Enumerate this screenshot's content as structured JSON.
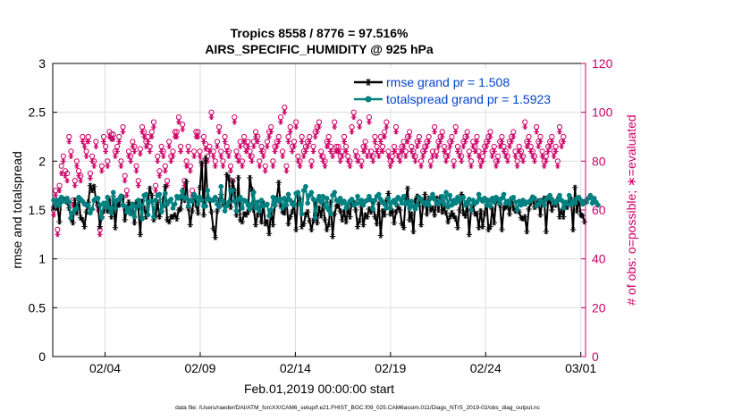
{
  "chart_data": {
    "type": "line",
    "title_line1": "Tropics 8558 / 8776 = 97.516%",
    "title_line2": "AIRS_SPECIFIC_HUMIDITY @ 925 hPa",
    "xlabel": "Feb.01,2019 00:00:00 start",
    "ylabel_left": "rmse and totalspread",
    "ylabel_right": "# of obs: o=possible; ∗=evaluated",
    "footer": "data file: /Users/raeder/DAI/ATM_forcXX/CAM6_setup/f.e21.FHIST_BGC.f09_025.CAM6assim.011/Diags_NTrS_2019-02/obs_diag_output.nc",
    "xlim": [
      0,
      28
    ],
    "x_ticks": [
      {
        "x": 2.75,
        "label": "02/04"
      },
      {
        "x": 7.75,
        "label": "02/09"
      },
      {
        "x": 12.75,
        "label": "02/14"
      },
      {
        "x": 17.75,
        "label": "02/19"
      },
      {
        "x": 22.75,
        "label": "02/24"
      },
      {
        "x": 27.75,
        "label": "03/01"
      }
    ],
    "ylim_left": [
      0,
      3
    ],
    "yticks_left": [
      "0",
      "0.5",
      "1",
      "1.5",
      "2",
      "2.5",
      "3"
    ],
    "ylim_right": [
      0,
      120
    ],
    "yticks_right": [
      "0",
      "20",
      "40",
      "60",
      "80",
      "100",
      "120"
    ],
    "legend": [
      {
        "label": "rmse grand pr = 1.508",
        "color": "#000000"
      },
      {
        "label": "totalspread grand pr = 1.5923",
        "color": "#008080"
      }
    ],
    "colors": {
      "rmse": "#000000",
      "spread": "#008080",
      "obs": "#cc0066",
      "legend_text": "#0044cc",
      "grid": "#dddddd"
    },
    "series": [
      {
        "name": "rmse",
        "axis": "left",
        "values": [
          1.53,
          1.58,
          1.53,
          1.38,
          1.62,
          1.61,
          1.6,
          1.58,
          1.52,
          1.41,
          1.37,
          1.6,
          1.47,
          1.62,
          1.42,
          1.4,
          1.33,
          1.48,
          1.58,
          1.75,
          1.7,
          1.74,
          1.6,
          1.55,
          1.33,
          1.43,
          1.49,
          1.56,
          1.49,
          1.6,
          1.43,
          1.64,
          1.32,
          1.55,
          1.55,
          1.64,
          1.63,
          1.4,
          1.5,
          1.58,
          1.48,
          1.48,
          1.37,
          1.58,
          1.53,
          1.25,
          1.59,
          1.52,
          1.43,
          1.6,
          1.72,
          1.65,
          1.4,
          1.44,
          1.58,
          1.43,
          1.49,
          1.61,
          1.74,
          1.4,
          1.38,
          1.43,
          1.43,
          1.45,
          1.41,
          1.5,
          1.51,
          1.7,
          1.6,
          1.79,
          1.52,
          1.35,
          1.49,
          1.65,
          1.55,
          1.47,
          1.73,
          1.98,
          1.45,
          2.03,
          1.62,
          1.6,
          1.48,
          1.31,
          1.22,
          1.49,
          1.6,
          1.66,
          1.56,
          1.54,
          1.86,
          1.83,
          1.53,
          1.79,
          1.7,
          1.45,
          1.83,
          1.4,
          1.38,
          1.46,
          1.45,
          1.48,
          1.83,
          1.71,
          1.5,
          1.35,
          1.45,
          1.52,
          1.38,
          1.57,
          1.36,
          1.38,
          1.26,
          1.48,
          1.35,
          1.55,
          1.62,
          1.78,
          1.54,
          1.48,
          1.47,
          1.6,
          1.36,
          1.43,
          1.48,
          1.57,
          1.3,
          1.65,
          1.61,
          1.33,
          1.36,
          1.45,
          1.48,
          1.39,
          1.3,
          1.39,
          1.59,
          1.37,
          1.52,
          1.44,
          1.56,
          1.4,
          1.3,
          1.35,
          1.58,
          1.23,
          1.46,
          1.54,
          1.54,
          1.49,
          1.4,
          1.48,
          1.38,
          1.51,
          1.43,
          1.6,
          1.57,
          1.5,
          1.33,
          1.39,
          1.53,
          1.35,
          1.45,
          1.43,
          1.51,
          1.48,
          1.59,
          1.43,
          1.36,
          1.56,
          1.24,
          1.49,
          1.45,
          1.6,
          1.67,
          1.46,
          1.49,
          1.37,
          1.48,
          1.53,
          1.5,
          1.36,
          1.32,
          1.62,
          1.72,
          1.4,
          1.46,
          1.28,
          1.6,
          1.64,
          1.62,
          1.35,
          1.54,
          1.66,
          1.46,
          1.62,
          1.5,
          1.52,
          1.45,
          1.62,
          1.5,
          1.63,
          1.48,
          1.52,
          1.47,
          1.38,
          1.43,
          1.47,
          1.44,
          1.41,
          1.32,
          1.5,
          1.66,
          1.47,
          1.44,
          1.57,
          1.25,
          1.5,
          1.54,
          1.46,
          1.46,
          1.32,
          1.49,
          1.33,
          1.46,
          1.6,
          1.3,
          1.33,
          1.51,
          1.37,
          1.6,
          1.59,
          1.55,
          1.3,
          1.52,
          1.53,
          1.55,
          1.46,
          1.61,
          1.52,
          1.49,
          1.5,
          1.48,
          1.42,
          1.41,
          1.43,
          1.28,
          1.51,
          1.57,
          1.63,
          1.53,
          1.57,
          1.59,
          1.45,
          1.59,
          1.62,
          1.28,
          1.59,
          1.59,
          1.5,
          1.57,
          1.55,
          1.61,
          1.43,
          1.49,
          1.43,
          1.57,
          1.53,
          1.58,
          1.61,
          1.3,
          1.73,
          1.49,
          1.61,
          1.45,
          1.44,
          1.38
        ]
      },
      {
        "name": "totalspread",
        "axis": "left",
        "values": [
          1.6,
          1.55,
          1.6,
          1.55,
          1.63,
          1.59,
          1.59,
          1.62,
          1.58,
          1.42,
          1.47,
          1.5,
          1.52,
          1.63,
          1.61,
          1.59,
          1.56,
          1.55,
          1.55,
          1.47,
          1.51,
          1.6,
          1.62,
          1.62,
          1.55,
          1.42,
          1.57,
          1.53,
          1.63,
          1.52,
          1.47,
          1.68,
          1.52,
          1.6,
          1.61,
          1.64,
          1.55,
          1.54,
          1.48,
          1.52,
          1.46,
          1.56,
          1.43,
          1.53,
          1.6,
          1.55,
          1.41,
          1.65,
          1.66,
          1.45,
          1.59,
          1.59,
          1.43,
          1.6,
          1.65,
          1.66,
          1.48,
          1.54,
          1.67,
          1.56,
          1.59,
          1.61,
          1.52,
          1.56,
          1.64,
          1.62,
          1.64,
          1.69,
          1.62,
          1.63,
          1.54,
          1.6,
          1.59,
          1.66,
          1.63,
          1.56,
          1.63,
          1.6,
          1.54,
          1.54,
          1.7,
          1.61,
          1.6,
          1.6,
          1.63,
          1.56,
          1.53,
          1.74,
          1.59,
          1.49,
          1.54,
          1.58,
          1.7,
          1.7,
          1.59,
          1.49,
          1.61,
          1.63,
          1.52,
          1.6,
          1.59,
          1.55,
          1.51,
          1.56,
          1.68,
          1.52,
          1.58,
          1.49,
          1.6,
          1.54,
          1.55,
          1.56,
          1.44,
          1.5,
          1.63,
          1.55,
          1.61,
          1.59,
          1.61,
          1.52,
          1.62,
          1.55,
          1.66,
          1.6,
          1.56,
          1.55,
          1.67,
          1.68,
          1.56,
          1.46,
          1.7,
          1.74,
          1.57,
          1.65,
          1.68,
          1.61,
          1.42,
          1.6,
          1.64,
          1.58,
          1.64,
          1.53,
          1.62,
          1.5,
          1.46,
          1.65,
          1.68,
          1.6,
          1.59,
          1.62,
          1.57,
          1.59,
          1.52,
          1.56,
          1.59,
          1.61,
          1.55,
          1.56,
          1.64,
          1.57,
          1.6,
          1.55,
          1.59,
          1.6,
          1.64,
          1.6,
          1.51,
          1.6,
          1.64,
          1.66,
          1.61,
          1.58,
          1.56,
          1.52,
          1.62,
          1.52,
          1.58,
          1.6,
          1.56,
          1.63,
          1.61,
          1.57,
          1.64,
          1.56,
          1.58,
          1.52,
          1.59,
          1.54,
          1.51,
          1.55,
          1.63,
          1.61,
          1.58,
          1.56,
          1.58,
          1.55,
          1.62,
          1.66,
          1.61,
          1.57,
          1.56,
          1.59,
          1.64,
          1.56,
          1.68,
          1.53,
          1.65,
          1.55,
          1.6,
          1.57,
          1.63,
          1.59,
          1.62,
          1.63,
          1.55,
          1.58,
          1.61,
          1.5,
          1.6,
          1.57,
          1.58,
          1.66,
          1.61,
          1.59,
          1.62,
          1.55,
          1.6,
          1.54,
          1.62,
          1.58,
          1.63,
          1.61,
          1.57,
          1.62,
          1.66,
          1.57,
          1.59,
          1.56,
          1.62,
          1.63,
          1.58,
          1.5,
          1.59,
          1.55,
          1.6,
          1.56,
          1.58,
          1.58,
          1.6,
          1.63,
          1.62,
          1.54,
          1.56,
          1.6,
          1.58,
          1.55,
          1.61,
          1.63,
          1.65,
          1.61,
          1.58,
          1.57,
          1.6,
          1.65,
          1.6,
          1.52,
          1.58,
          1.56,
          1.65,
          1.56,
          1.59,
          1.57,
          1.62,
          1.63,
          1.6,
          1.56,
          1.59,
          1.58,
          1.62,
          1.65,
          1.57,
          1.62,
          1.58,
          1.55
        ]
      },
      {
        "name": "obs_possible",
        "axis": "right",
        "marker": "o",
        "values": [
          60,
          68,
          52,
          70,
          78,
          82,
          76,
          75,
          90,
          84,
          64,
          72,
          80,
          76,
          74,
          90,
          88,
          84,
          90,
          75,
          82,
          80,
          88,
          62,
          52,
          78,
          90,
          86,
          80,
          92,
          91,
          91,
          84,
          86,
          90,
          80,
          94,
          74,
          68,
          84,
          82,
          88,
          86,
          78,
          72,
          85,
          94,
          92,
          88,
          90,
          86,
          92,
          96,
          70,
          82,
          76,
          86,
          84,
          78,
          72,
          88,
          82,
          84,
          92,
          92,
          98,
          86,
          95,
          72,
          80,
          86,
          78,
          68,
          84,
          92,
          92,
          84,
          80,
          90,
          87,
          82,
          86,
          100,
          84,
          80,
          88,
          94,
          84,
          80,
          90,
          86,
          84,
          78,
          72,
          98,
          84,
          82,
          88,
          80,
          90,
          86,
          88,
          84,
          82,
          88,
          92,
          90,
          80,
          86,
          84,
          78,
          88,
          92,
          94,
          80,
          86,
          88,
          90,
          98,
          84,
          102,
          78,
          90,
          94,
          86,
          88,
          96,
          82,
          80,
          90,
          84,
          86,
          88,
          90,
          80,
          86,
          92,
          94,
          96,
          84,
          82,
          80,
          88,
          90,
          86,
          84,
          96,
          86,
          86,
          82,
          84,
          90,
          86,
          82,
          80,
          94,
          100,
          84,
          82,
          96,
          80,
          86,
          88,
          84,
          98,
          84,
          82,
          90,
          86,
          84,
          90,
          86,
          92,
          96,
          84,
          80,
          82,
          86,
          94,
          84,
          82,
          86,
          88,
          84,
          90,
          92,
          86,
          84,
          82,
          88,
          90,
          80,
          84,
          86,
          88,
          90,
          80,
          84,
          94,
          84,
          88,
          90,
          92,
          86,
          82,
          84,
          88,
          90,
          80,
          94,
          86,
          84,
          82,
          88,
          90,
          92,
          84,
          80,
          88,
          86,
          90,
          84,
          80,
          82,
          86,
          88,
          90,
          92,
          84,
          86,
          80,
          82,
          88,
          90,
          86,
          84,
          82,
          88,
          90,
          92,
          84,
          80,
          86,
          84,
          82,
          96,
          88,
          90,
          86,
          84,
          82,
          94,
          88,
          90,
          84,
          80,
          82,
          86,
          88,
          90,
          84,
          86,
          80,
          94,
          88,
          90
        ]
      },
      {
        "name": "obs_evaluated",
        "axis": "right",
        "marker": "*",
        "values": [
          58,
          66,
          50,
          68,
          75,
          80,
          74,
          72,
          88,
          82,
          62,
          70,
          78,
          74,
          72,
          88,
          86,
          82,
          88,
          73,
          80,
          78,
          86,
          60,
          50,
          76,
          88,
          84,
          78,
          90,
          89,
          89,
          82,
          84,
          88,
          78,
          92,
          72,
          66,
          82,
          80,
          86,
          84,
          76,
          70,
          83,
          92,
          90,
          86,
          88,
          84,
          90,
          94,
          68,
          80,
          74,
          84,
          82,
          76,
          70,
          86,
          80,
          82,
          90,
          90,
          96,
          84,
          93,
          70,
          78,
          84,
          76,
          66,
          82,
          90,
          90,
          82,
          78,
          88,
          85,
          80,
          84,
          98,
          82,
          78,
          86,
          92,
          82,
          78,
          88,
          84,
          82,
          76,
          70,
          96,
          82,
          80,
          86,
          78,
          88,
          84,
          86,
          82,
          80,
          86,
          90,
          88,
          78,
          84,
          82,
          76,
          86,
          90,
          92,
          78,
          84,
          86,
          88,
          96,
          82,
          100,
          76,
          88,
          92,
          84,
          86,
          94,
          80,
          78,
          88,
          82,
          84,
          86,
          88,
          78,
          84,
          90,
          92,
          94,
          82,
          80,
          78,
          86,
          88,
          84,
          82,
          94,
          84,
          84,
          80,
          82,
          88,
          84,
          80,
          78,
          92,
          98,
          82,
          80,
          94,
          78,
          84,
          86,
          82,
          96,
          82,
          80,
          88,
          84,
          82,
          88,
          84,
          90,
          94,
          82,
          78,
          80,
          84,
          92,
          82,
          80,
          84,
          86,
          82,
          88,
          90,
          84,
          82,
          80,
          86,
          88,
          78,
          82,
          84,
          86,
          88,
          78,
          82,
          92,
          82,
          86,
          88,
          90,
          84,
          80,
          82,
          86,
          88,
          78,
          92,
          84,
          82,
          80,
          86,
          88,
          90,
          82,
          78,
          86,
          84,
          88,
          82,
          78,
          80,
          84,
          86,
          88,
          90,
          82,
          84,
          78,
          80,
          86,
          88,
          84,
          82,
          80,
          86,
          88,
          90,
          82,
          78,
          84,
          82,
          80,
          94,
          86,
          88,
          84,
          82,
          80,
          92,
          86,
          88,
          82,
          78,
          80,
          84,
          86,
          88,
          82,
          84,
          78,
          92,
          86,
          88
        ]
      }
    ]
  }
}
